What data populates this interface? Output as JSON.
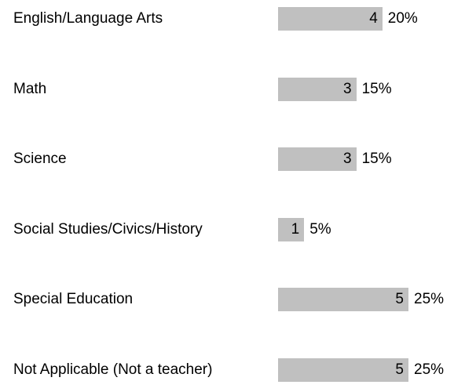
{
  "chart_data": {
    "type": "bar",
    "categories": [
      "English/Language Arts",
      "Math",
      "Science",
      "Social Studies/Civics/History",
      "Special Education",
      "Not Applicable (Not a teacher)"
    ],
    "values": [
      4,
      3,
      3,
      1,
      5,
      5
    ],
    "percentages": [
      "20%",
      "15%",
      "15%",
      "5%",
      "25%",
      "25%"
    ],
    "color": "#c0c0c0"
  }
}
